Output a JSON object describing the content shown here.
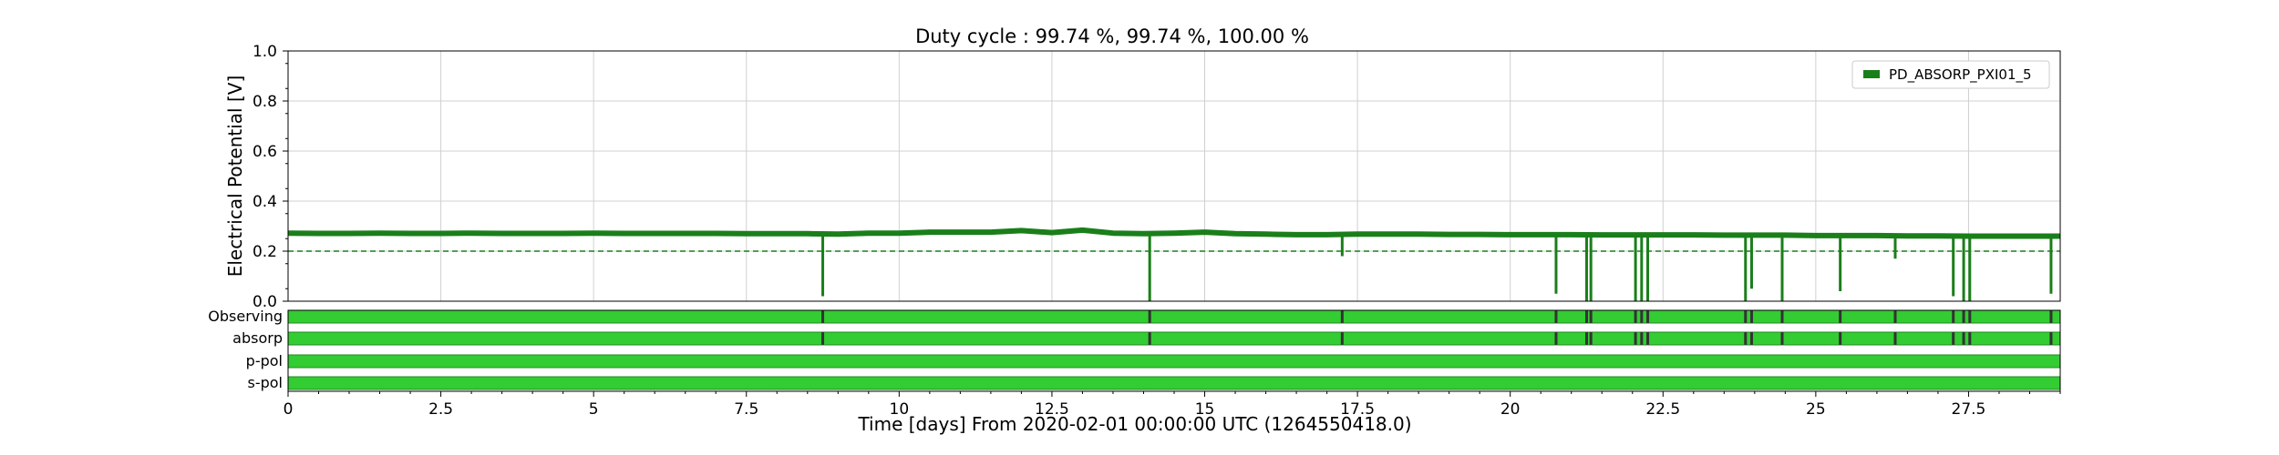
{
  "chart_data": {
    "type": "line",
    "title": "Duty cycle : 99.74 %, 99.74 %, 100.00 %",
    "xlabel": "Time [days] From 2020-02-01 00:00:00 UTC (1264550418.0)",
    "ylabel": "Electrical Potential [V]",
    "xlim": [
      0,
      29
    ],
    "ylim": [
      0,
      1.0
    ],
    "xticks": [
      0,
      2.5,
      5,
      7.5,
      10,
      12.5,
      15,
      17.5,
      20,
      22.5,
      25,
      27.5
    ],
    "xtick_labels": [
      "0",
      "2.5",
      "5",
      "7.5",
      "10",
      "12.5",
      "15",
      "17.5",
      "20",
      "22.5",
      "25",
      "27.5"
    ],
    "yticks": [
      0,
      0.2,
      0.4,
      0.6,
      0.8,
      1.0
    ],
    "ytick_labels": [
      "0.0",
      "0.2",
      "0.4",
      "0.6",
      "0.8",
      "1.0"
    ],
    "grid": true,
    "legend": "top-right",
    "series": [
      {
        "name": "PD_ABSORP_PXI01_5",
        "color": "#1a7f1a",
        "x": [
          0,
          0.5,
          1,
          1.5,
          2,
          2.5,
          3,
          3.5,
          4,
          4.5,
          5,
          5.5,
          6,
          6.5,
          7,
          7.5,
          8,
          8.5,
          9,
          9.5,
          10,
          10.5,
          11,
          11.5,
          12,
          12.5,
          13,
          13.5,
          14,
          14.5,
          15,
          15.5,
          16,
          16.5,
          17,
          17.5,
          18,
          18.5,
          19,
          19.5,
          20,
          20.5,
          21,
          21.5,
          22,
          22.5,
          23,
          23.5,
          24,
          24.5,
          25,
          25.5,
          26,
          26.5,
          27,
          27.5,
          28,
          28.5,
          29
        ],
        "y": [
          0.272,
          0.271,
          0.271,
          0.272,
          0.271,
          0.271,
          0.272,
          0.271,
          0.271,
          0.271,
          0.272,
          0.271,
          0.271,
          0.271,
          0.271,
          0.27,
          0.27,
          0.27,
          0.268,
          0.272,
          0.272,
          0.276,
          0.276,
          0.276,
          0.282,
          0.274,
          0.284,
          0.272,
          0.27,
          0.272,
          0.276,
          0.27,
          0.268,
          0.266,
          0.266,
          0.268,
          0.268,
          0.268,
          0.267,
          0.267,
          0.266,
          0.266,
          0.266,
          0.265,
          0.265,
          0.265,
          0.265,
          0.264,
          0.264,
          0.264,
          0.262,
          0.262,
          0.262,
          0.261,
          0.261,
          0.26,
          0.26,
          0.26,
          0.26
        ]
      }
    ],
    "dips": [
      {
        "x": 8.75,
        "y": 0.02
      },
      {
        "x": 14.1,
        "y": 0.0
      },
      {
        "x": 17.25,
        "y": 0.18
      },
      {
        "x": 20.75,
        "y": 0.03
      },
      {
        "x": 21.25,
        "y": 0.0
      },
      {
        "x": 21.32,
        "y": 0.0
      },
      {
        "x": 22.05,
        "y": 0.0
      },
      {
        "x": 22.15,
        "y": 0.0
      },
      {
        "x": 22.25,
        "y": 0.0
      },
      {
        "x": 23.85,
        "y": 0.0
      },
      {
        "x": 23.95,
        "y": 0.05
      },
      {
        "x": 24.45,
        "y": 0.0
      },
      {
        "x": 25.4,
        "y": 0.04
      },
      {
        "x": 26.3,
        "y": 0.17
      },
      {
        "x": 27.25,
        "y": 0.02
      },
      {
        "x": 27.42,
        "y": 0.0
      },
      {
        "x": 27.52,
        "y": 0.0
      },
      {
        "x": 28.85,
        "y": 0.03
      }
    ],
    "threshold": {
      "y": 0.2,
      "style": "dashed",
      "color": "#1a7f1a"
    },
    "segments": [
      {
        "label": "Observing",
        "color": "#33cc33",
        "gaps": [
          8.75,
          14.1,
          17.25,
          20.75,
          21.25,
          21.32,
          22.05,
          22.15,
          22.25,
          23.85,
          23.95,
          24.45,
          25.4,
          26.3,
          27.25,
          27.42,
          27.52,
          28.85
        ]
      },
      {
        "label": "absorp",
        "color": "#33cc33",
        "gaps": [
          8.75,
          14.1,
          17.25,
          20.75,
          21.25,
          21.32,
          22.05,
          22.15,
          22.25,
          23.85,
          23.95,
          24.45,
          25.4,
          26.3,
          27.25,
          27.42,
          27.52,
          28.85
        ]
      },
      {
        "label": "p-pol",
        "color": "#33cc33",
        "gaps": []
      },
      {
        "label": "s-pol",
        "color": "#33cc33",
        "gaps": []
      }
    ]
  }
}
